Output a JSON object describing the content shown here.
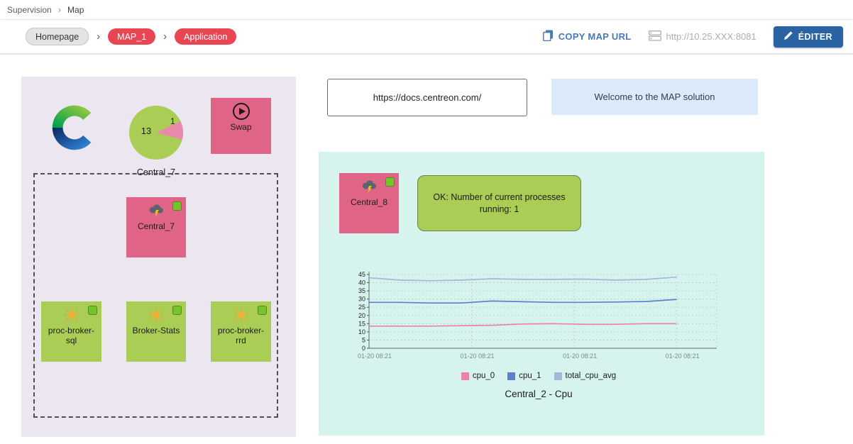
{
  "breadcrumb": {
    "section": "Supervision",
    "page": "Map",
    "separator": "›"
  },
  "toolbar": {
    "crumbs": [
      {
        "label": "Homepage"
      },
      {
        "label": "MAP_1"
      },
      {
        "label": "Application"
      }
    ],
    "separator": "›",
    "copy_map_url_label": "COPY MAP URL",
    "server_url": "http://10.25.XXX:8081",
    "edit_button_label": "ÉDITER"
  },
  "map_left": {
    "pie_node": {
      "big_value": "13",
      "small_value": "1",
      "label": "Central_7"
    },
    "swap_node": {
      "label": "Swap"
    },
    "central7_node": {
      "label": "Central_7"
    },
    "green_nodes": [
      {
        "label": "proc-broker-sql"
      },
      {
        "label": "Broker-Stats"
      },
      {
        "label": "proc-broker-rrd"
      }
    ]
  },
  "map_right": {
    "docs_url": "https://docs.centreon.com/",
    "welcome_text": "Welcome to the MAP solution",
    "central8_node": {
      "label": "Central_8"
    },
    "status_box": {
      "text": "OK: Number of current processes running: 1"
    }
  },
  "chart_data": {
    "type": "line",
    "title": "Central_2 - Cpu",
    "x_ticks": [
      "01-20 08:21",
      "01-20 08:21",
      "01-20 08:21",
      "01-20 08:21"
    ],
    "y_ticks": [
      0,
      5,
      10,
      15,
      20,
      25,
      30,
      35,
      40,
      45
    ],
    "ylim": [
      0,
      45
    ],
    "grid": true,
    "legend_position": "bottom",
    "series": [
      {
        "name": "cpu_0",
        "color": "#e885a7",
        "values": [
          13.5,
          13.5,
          13.5,
          13.8,
          14,
          14.8,
          15,
          14.6,
          14.6,
          15,
          15
        ]
      },
      {
        "name": "cpu_1",
        "color": "#5b7fd1",
        "values": [
          28,
          28,
          27.6,
          27.6,
          28.8,
          28.4,
          28,
          28,
          28.2,
          28.5,
          29.8
        ]
      },
      {
        "name": "total_cpu_avg",
        "color": "#a3b8d8",
        "values": [
          43,
          41.6,
          41.2,
          41.6,
          42.4,
          42,
          42,
          42.2,
          41.6,
          42,
          43.4
        ]
      }
    ]
  },
  "colors": {
    "accent_blue": "#2a63a3",
    "link_blue": "#4779bd",
    "pill_red": "#e84653",
    "node_pink": "#e06485",
    "node_green": "#a9cd55",
    "status_green": "#77c32d",
    "panel_lavender": "#ece6f1",
    "panel_mint": "#d7f3ed",
    "welcome_blue": "#dcebfc"
  }
}
